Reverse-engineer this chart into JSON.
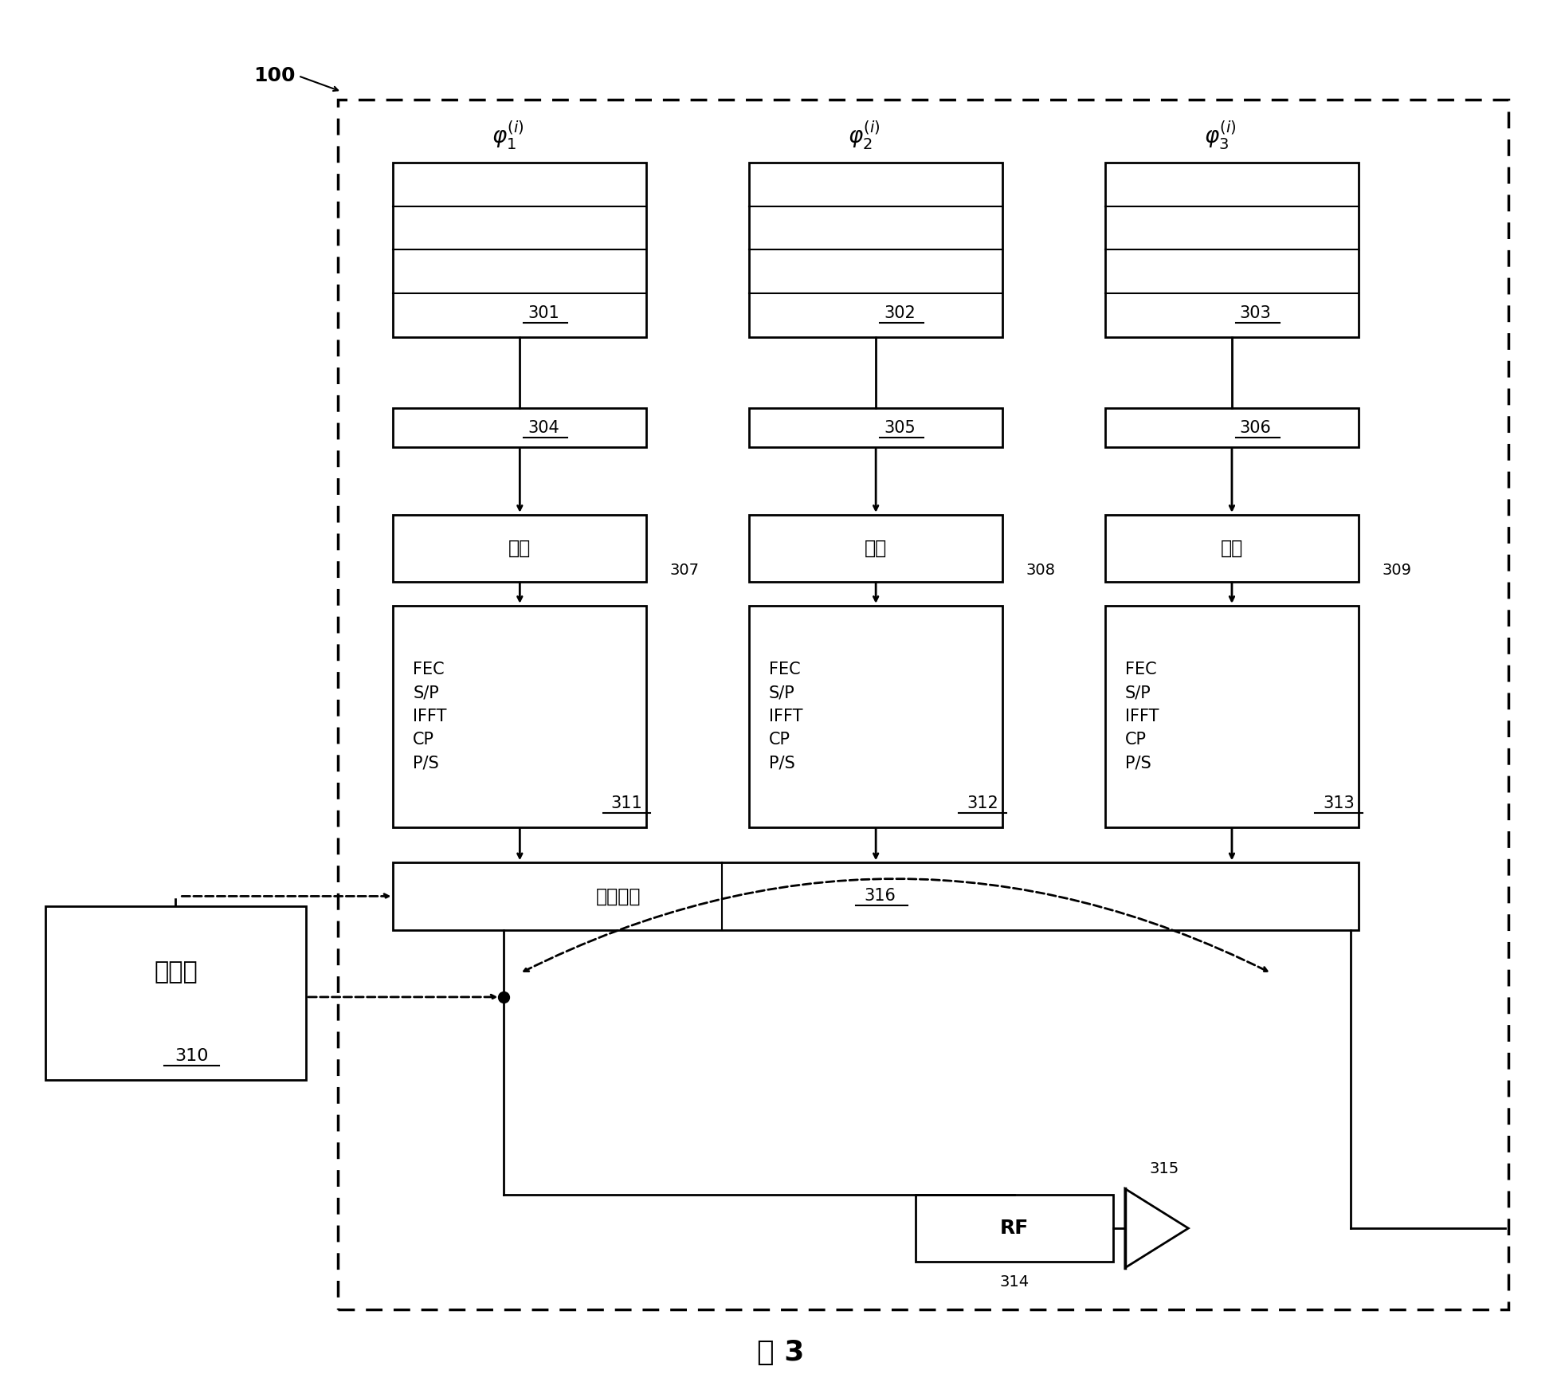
{
  "title": "图 3",
  "bg_color": "#ffffff",
  "fig_label": "100",
  "scheduler_label": "调度器",
  "scheduler_ref": "310",
  "meas_label": "测量单元",
  "meas_ref": "316",
  "rf_label": "RF",
  "rf_ref": "314",
  "ant_ref": "315",
  "buffer_refs": [
    "301",
    "302",
    "303"
  ],
  "scramble_refs": [
    "304",
    "305",
    "306"
  ],
  "scramble_label": "加扰",
  "modem_refs": [
    "311",
    "312",
    "313"
  ],
  "arrow_refs": [
    "307",
    "308",
    "309"
  ]
}
